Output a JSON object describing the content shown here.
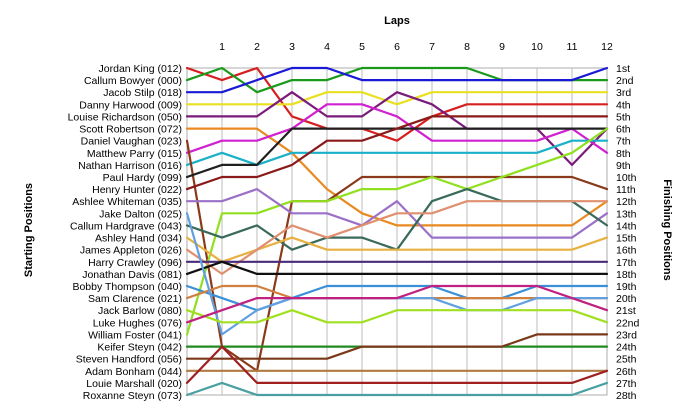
{
  "chart_data": {
    "type": "line",
    "title": "",
    "xlabel": "Laps",
    "ylabel_left": "Starting Positions",
    "ylabel_right": "Finishing Positions",
    "x": [
      0,
      1,
      2,
      3,
      4,
      5,
      6,
      7,
      8,
      9,
      10,
      11,
      12
    ],
    "x_tick_labels": [
      "1",
      "2",
      "3",
      "4",
      "5",
      "6",
      "7",
      "8",
      "9",
      "10",
      "11",
      "12"
    ],
    "y_range": [
      1,
      28
    ],
    "y_inverted": true,
    "grid": true,
    "drivers": [
      "Jordan King (012)",
      "Callum Bowyer (000)",
      "Jacob Stilp (018)",
      "Danny Harwood (009)",
      "Louise Richardson (050)",
      "Scott Robertson (072)",
      "Daniel Vaughan (023)",
      "Matthew Parry (015)",
      "Nathan Harrison (016)",
      "Paul Hardy (099)",
      "Henry Hunter (022)",
      "Ashlee Whiteman (035)",
      "Jake Dalton (025)",
      "Callum Hardgrave (043)",
      "Ashley Hand (034)",
      "James Appleton (026)",
      "Harry Crawley (096)",
      "Jonathan Davis (081)",
      "Bobby Thompson (040)",
      "Sam Clarence (021)",
      "Jack Barlow (080)",
      "Luke Hughes (076)",
      "William Foster (041)",
      "Keifer Steyn (042)",
      "Steven Handford (056)",
      "Adam Bonham (044)",
      "Louie Marshall (020)",
      "Roxanne Steyn (073)"
    ],
    "finishing_positions": [
      "1st",
      "2nd",
      "3rd",
      "4th",
      "5th",
      "6th",
      "7th",
      "8th",
      "9th",
      "10th",
      "11th",
      "12th",
      "13th",
      "14th",
      "15th",
      "16th",
      "17th",
      "18th",
      "19th",
      "20th",
      "21st",
      "22nd",
      "23rd",
      "24th",
      "25th",
      "26th",
      "27th",
      "28th"
    ],
    "series": [
      {
        "color": "#d62020",
        "values": [
          1,
          2,
          1,
          5,
          6,
          6,
          7,
          5,
          4,
          4,
          4,
          4,
          4
        ]
      },
      {
        "color": "#1a9a1a",
        "values": [
          2,
          1,
          3,
          2,
          2,
          1,
          1,
          1,
          1,
          2,
          2,
          2,
          2
        ]
      },
      {
        "color": "#1a1ad6",
        "values": [
          3,
          3,
          2,
          1,
          1,
          2,
          2,
          2,
          2,
          2,
          2,
          2,
          1
        ]
      },
      {
        "color": "#e8e020",
        "values": [
          4,
          4,
          4,
          4,
          3,
          3,
          4,
          3,
          3,
          3,
          3,
          3,
          3
        ]
      },
      {
        "color": "#7a1a7a",
        "values": [
          5,
          5,
          5,
          3,
          5,
          5,
          3,
          4,
          6,
          6,
          6,
          9,
          6
        ]
      },
      {
        "color": "#e88a20",
        "values": [
          6,
          6,
          6,
          8,
          11,
          13,
          14,
          14,
          14,
          14,
          14,
          14,
          12
        ]
      },
      {
        "color": "#d020d0",
        "values": [
          8,
          7,
          7,
          6,
          4,
          4,
          5,
          7,
          7,
          7,
          7,
          6,
          8
        ]
      },
      {
        "color": "#1ab0c8",
        "values": [
          9,
          8,
          9,
          8,
          8,
          8,
          8,
          8,
          8,
          8,
          8,
          7,
          7
        ]
      },
      {
        "color": "#8a3a1a",
        "values": [
          7,
          24,
          26,
          12,
          12,
          10,
          10,
          10,
          10,
          10,
          10,
          10,
          11
        ]
      },
      {
        "color": "#202020",
        "values": [
          10,
          9,
          9,
          6,
          6,
          6,
          6,
          6,
          6,
          6,
          6,
          6,
          6
        ]
      },
      {
        "color": "#8a1a1a",
        "values": [
          11,
          10,
          10,
          9,
          7,
          7,
          6,
          5,
          5,
          5,
          5,
          5,
          5
        ]
      },
      {
        "color": "#90e020",
        "values": [
          23,
          13,
          13,
          12,
          12,
          11,
          11,
          10,
          11,
          10,
          9,
          8,
          6
        ]
      },
      {
        "color": "#9a70c8",
        "values": [
          12,
          12,
          11,
          13,
          13,
          14,
          12,
          15,
          15,
          15,
          15,
          15,
          13
        ]
      },
      {
        "color": "#3a6a5a",
        "values": [
          14,
          15,
          14,
          16,
          15,
          15,
          16,
          12,
          11,
          12,
          12,
          12,
          14
        ]
      },
      {
        "color": "#e8b040",
        "values": [
          15,
          17,
          16,
          15,
          16,
          16,
          16,
          16,
          16,
          16,
          16,
          16,
          15
        ]
      },
      {
        "color": "#e09070",
        "values": [
          16,
          18,
          16,
          14,
          15,
          14,
          13,
          13,
          12,
          12,
          12,
          12,
          12
        ]
      },
      {
        "color": "#4a2a7a",
        "values": [
          17,
          17,
          17,
          17,
          17,
          17,
          17,
          17,
          17,
          17,
          17,
          17,
          17
        ]
      },
      {
        "color": "#101010",
        "values": [
          18,
          17,
          18,
          18,
          18,
          18,
          18,
          18,
          18,
          18,
          18,
          18,
          18
        ]
      },
      {
        "color": "#3a90d8",
        "values": [
          19,
          20,
          21,
          20,
          19,
          19,
          19,
          19,
          20,
          20,
          19,
          19,
          19
        ]
      },
      {
        "color": "#d08040",
        "values": [
          20,
          19,
          19,
          20,
          20,
          20,
          20,
          20,
          20,
          20,
          20,
          20,
          20
        ]
      },
      {
        "color": "#60a0e0",
        "values": [
          13,
          23,
          21,
          20,
          20,
          20,
          20,
          20,
          21,
          21,
          20,
          20,
          20
        ]
      },
      {
        "color": "#a0e020",
        "values": [
          21,
          22,
          22,
          21,
          22,
          22,
          21,
          21,
          21,
          21,
          21,
          21,
          22
        ]
      },
      {
        "color": "#c02080",
        "values": [
          22,
          21,
          20,
          20,
          20,
          20,
          20,
          19,
          19,
          19,
          19,
          20,
          21
        ]
      },
      {
        "color": "#208a20",
        "values": [
          24,
          24,
          24,
          24,
          24,
          24,
          24,
          24,
          24,
          24,
          24,
          24,
          24
        ]
      },
      {
        "color": "#7a3a1a",
        "values": [
          25,
          25,
          25,
          25,
          25,
          24,
          24,
          24,
          24,
          24,
          23,
          23,
          23
        ]
      },
      {
        "color": "#b07a40",
        "values": [
          26,
          26,
          26,
          26,
          26,
          26,
          26,
          26,
          26,
          26,
          26,
          26,
          26
        ]
      },
      {
        "color": "#a02020",
        "values": [
          27,
          24,
          27,
          27,
          27,
          27,
          27,
          27,
          27,
          27,
          27,
          27,
          26
        ]
      },
      {
        "color": "#4aa0a0",
        "values": [
          28,
          27,
          28,
          28,
          28,
          28,
          28,
          28,
          28,
          28,
          28,
          28,
          27
        ]
      }
    ]
  }
}
